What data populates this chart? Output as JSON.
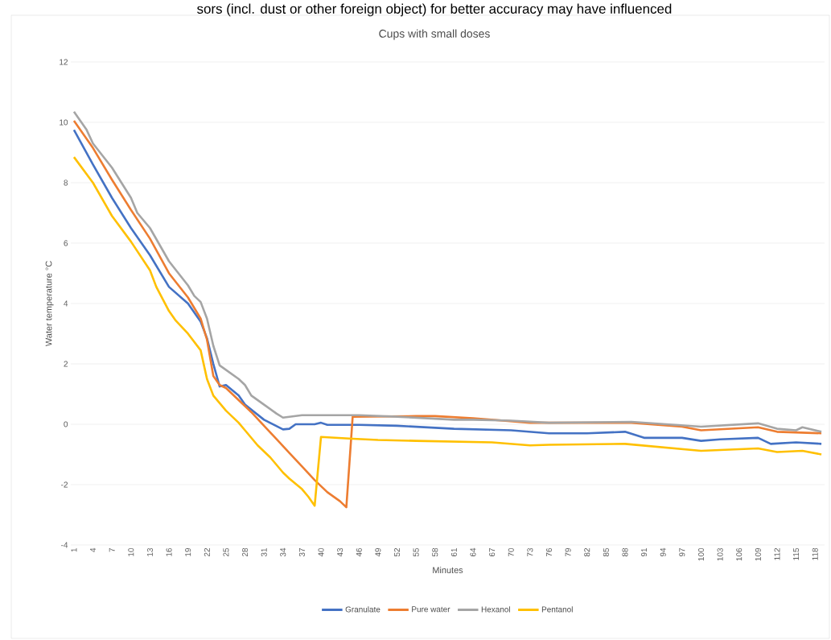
{
  "chart_data": {
    "type": "line",
    "title": "Cups with small doses",
    "annotations": [
      "sors (incl. dust or other foreign object) for better accuracy may have influenced"
    ],
    "xlabel": "Minutes",
    "ylabel": "Water temperature °C",
    "xlim": [
      0.5,
      119.5
    ],
    "xticks": [
      1,
      4,
      7,
      10,
      13,
      16,
      19,
      22,
      25,
      28,
      31,
      34,
      37,
      40,
      43,
      46,
      49,
      52,
      55,
      58,
      61,
      64,
      67,
      70,
      73,
      76,
      79,
      82,
      85,
      88,
      91,
      94,
      97,
      100,
      103,
      106,
      109,
      112,
      115,
      118
    ],
    "ylim": [
      -4,
      12
    ],
    "yticks": [
      -4,
      -2,
      0,
      2,
      4,
      6,
      8,
      10,
      12
    ],
    "grid": "y",
    "legend": "bottom",
    "marker": "none",
    "line_style": "solid",
    "series": [
      {
        "name": "Granulate",
        "color": "#4472c4",
        "x": [
          1,
          4,
          7,
          10,
          13,
          16,
          19,
          21,
          22,
          23,
          24,
          25,
          27,
          28,
          31,
          34,
          35,
          36,
          39,
          40,
          41,
          46,
          52,
          61,
          70,
          76,
          82,
          88,
          91,
          97,
          100,
          103,
          109,
          111,
          115,
          119
        ],
        "values": [
          9.75,
          8.6,
          7.5,
          6.5,
          5.6,
          4.55,
          4.0,
          3.4,
          2.85,
          2.0,
          1.25,
          1.3,
          0.95,
          0.65,
          0.15,
          -0.17,
          -0.15,
          0.0,
          0.0,
          0.05,
          -0.02,
          -0.02,
          -0.05,
          -0.15,
          -0.2,
          -0.3,
          -0.3,
          -0.25,
          -0.45,
          -0.45,
          -0.55,
          -0.5,
          -0.45,
          -0.65,
          -0.6,
          -0.65
        ]
      },
      {
        "name": "Pure water",
        "color": "#ed7d31",
        "x": [
          1,
          4,
          7,
          10,
          13,
          16,
          19,
          21,
          22,
          23,
          24,
          25,
          27,
          29,
          31,
          33,
          35,
          37,
          39,
          41,
          43,
          44,
          45,
          55,
          58,
          64,
          73,
          89,
          97,
          100,
          109,
          112,
          119
        ],
        "values": [
          10.05,
          9.15,
          8.1,
          7.1,
          6.15,
          5.0,
          4.2,
          3.5,
          2.8,
          1.6,
          1.3,
          1.2,
          0.8,
          0.4,
          -0.05,
          -0.5,
          -0.95,
          -1.4,
          -1.85,
          -2.25,
          -2.55,
          -2.75,
          0.25,
          0.27,
          0.27,
          0.2,
          0.05,
          0.05,
          -0.08,
          -0.2,
          -0.1,
          -0.25,
          -0.3
        ]
      },
      {
        "name": "Hexanol",
        "color": "#a5a5a5",
        "x": [
          1,
          3,
          4,
          7,
          10,
          11,
          13,
          16,
          19,
          20,
          21,
          22,
          23,
          24,
          27,
          28,
          29,
          31,
          33,
          34,
          37,
          46,
          52,
          61,
          64,
          70,
          76,
          89,
          100,
          109,
          112,
          115,
          116,
          119
        ],
        "values": [
          10.35,
          9.75,
          9.3,
          8.5,
          7.5,
          7.0,
          6.5,
          5.4,
          4.6,
          4.25,
          4.05,
          3.5,
          2.6,
          1.95,
          1.5,
          1.3,
          0.95,
          0.65,
          0.35,
          0.22,
          0.3,
          0.3,
          0.25,
          0.15,
          0.15,
          0.12,
          0.05,
          0.08,
          -0.08,
          0.03,
          -0.15,
          -0.2,
          -0.1,
          -0.25
        ]
      },
      {
        "name": "Pentanol",
        "color": "#ffc000",
        "x": [
          1,
          4,
          7,
          10,
          13,
          14,
          16,
          17,
          19,
          21,
          22,
          23,
          25,
          27,
          28,
          30,
          32,
          34,
          35,
          37,
          38,
          39,
          40,
          45,
          49,
          55,
          67,
          73,
          76,
          88,
          100,
          109,
          112,
          116,
          119
        ],
        "values": [
          8.85,
          8.0,
          6.9,
          6.05,
          5.1,
          4.55,
          3.75,
          3.45,
          3.0,
          2.45,
          1.5,
          0.95,
          0.45,
          0.05,
          -0.2,
          -0.7,
          -1.1,
          -1.6,
          -1.8,
          -2.15,
          -2.4,
          -2.7,
          -0.42,
          -0.48,
          -0.52,
          -0.55,
          -0.6,
          -0.7,
          -0.68,
          -0.65,
          -0.88,
          -0.8,
          -0.92,
          -0.88,
          -1.0
        ]
      }
    ]
  }
}
